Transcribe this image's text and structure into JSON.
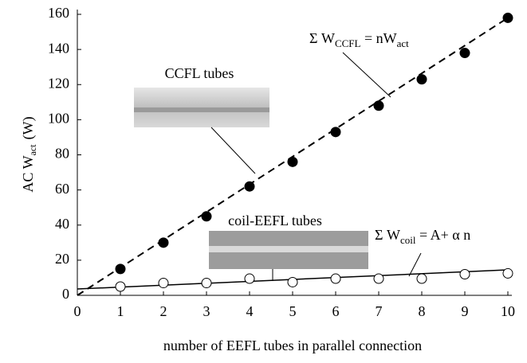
{
  "chart_data": {
    "type": "scatter",
    "x_label": "number of EEFL tubes in parallel connection",
    "y_label": {
      "main": "AC  W",
      "sub": "act",
      "unit": "(W)"
    },
    "xlim": [
      0,
      10
    ],
    "xticks": [
      0,
      1,
      2,
      3,
      4,
      5,
      6,
      7,
      8,
      9,
      10
    ],
    "ylim": [
      0,
      160
    ],
    "yticks": [
      0,
      20,
      40,
      60,
      80,
      100,
      120,
      140,
      160
    ],
    "x": [
      1,
      2,
      3,
      4,
      5,
      6,
      7,
      8,
      9,
      10
    ],
    "series": [
      {
        "marker": "filled",
        "color": "#000000",
        "values": [
          15,
          30,
          45,
          62,
          76,
          93,
          108,
          123,
          138,
          158
        ]
      },
      {
        "marker": "open",
        "color": "#000000",
        "values": [
          5,
          7,
          7,
          9.5,
          7.5,
          9.5,
          9.5,
          9.5,
          12,
          12.5
        ]
      }
    ],
    "fits": [
      {
        "x": [
          0,
          10
        ],
        "values": [
          0,
          158
        ],
        "dashed": true
      },
      {
        "x": [
          0,
          10
        ],
        "values": [
          3.6,
          14.5
        ],
        "dashed": false
      }
    ],
    "annotations": [
      {
        "parts": [
          {
            "text": "Σ W"
          },
          {
            "text": "CCFL",
            "sub": true
          },
          {
            "text": " = nW"
          },
          {
            "text": "act",
            "sub": true
          }
        ]
      },
      {
        "parts": [
          {
            "text": "Σ W"
          },
          {
            "text": "coil",
            "sub": true
          },
          {
            "text": " = A+  α n"
          }
        ]
      }
    ],
    "photo_labels": [
      "CCFL tubes",
      "coil-EEFL tubes"
    ]
  }
}
